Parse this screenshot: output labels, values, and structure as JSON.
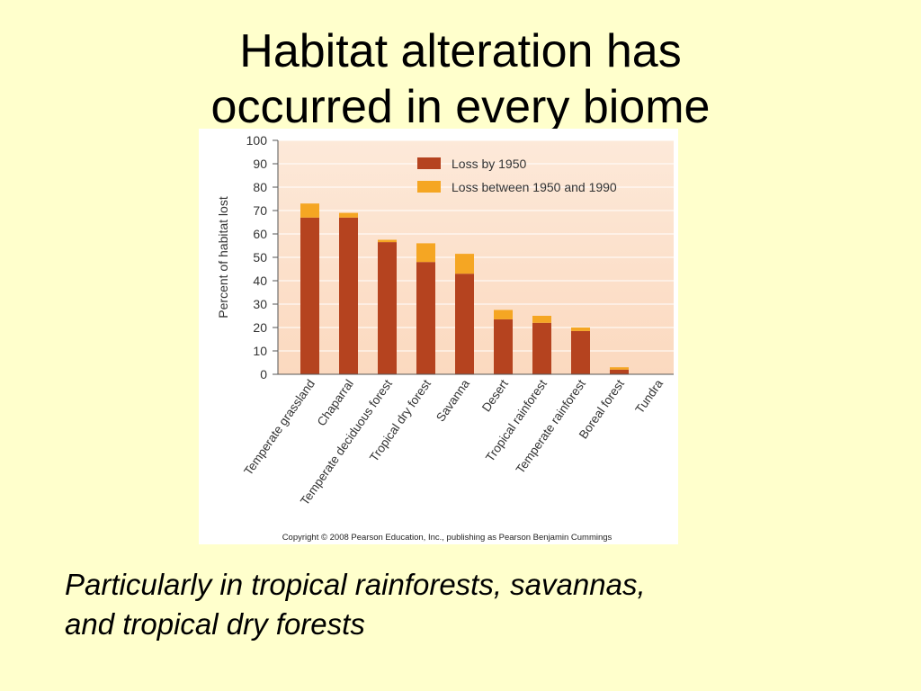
{
  "slide": {
    "title_lines": [
      "Habitat alteration has",
      "occurred in every biome"
    ],
    "caption_lines": [
      "Particularly in tropical rainforests, savannas,",
      "and tropical dry forests"
    ]
  },
  "chart_data": {
    "type": "bar",
    "stacked": true,
    "categories": [
      "Temperate grassland",
      "Chaparral",
      "Temperate deciduous forest",
      "Tropical dry forest",
      "Savanna",
      "Desert",
      "Tropical rainforest",
      "Temperate rainforest",
      "Boreal forest",
      "Tundra"
    ],
    "series": [
      {
        "name": "Loss by 1950",
        "values": [
          67,
          67,
          56.5,
          48,
          43,
          23.5,
          22,
          18.5,
          2,
          0
        ],
        "color": "#b5431f"
      },
      {
        "name": "Loss between 1950 and 1990",
        "values": [
          6,
          2,
          1,
          8,
          8.5,
          4,
          3,
          1.5,
          1,
          0
        ],
        "color": "#f5a623"
      }
    ],
    "ylabel": "Percent of habitat lost",
    "xlabel": "",
    "ylim": [
      0,
      100
    ],
    "yticks": [
      0,
      10,
      20,
      30,
      40,
      50,
      60,
      70,
      80,
      90,
      100
    ],
    "grid": true,
    "legend_position": "top-right",
    "background_gradient": [
      "#fde9d9",
      "#fbd9bf"
    ],
    "copyright": "Copyright © 2008 Pearson Education, Inc., publishing as Pearson Benjamin Cummings"
  }
}
